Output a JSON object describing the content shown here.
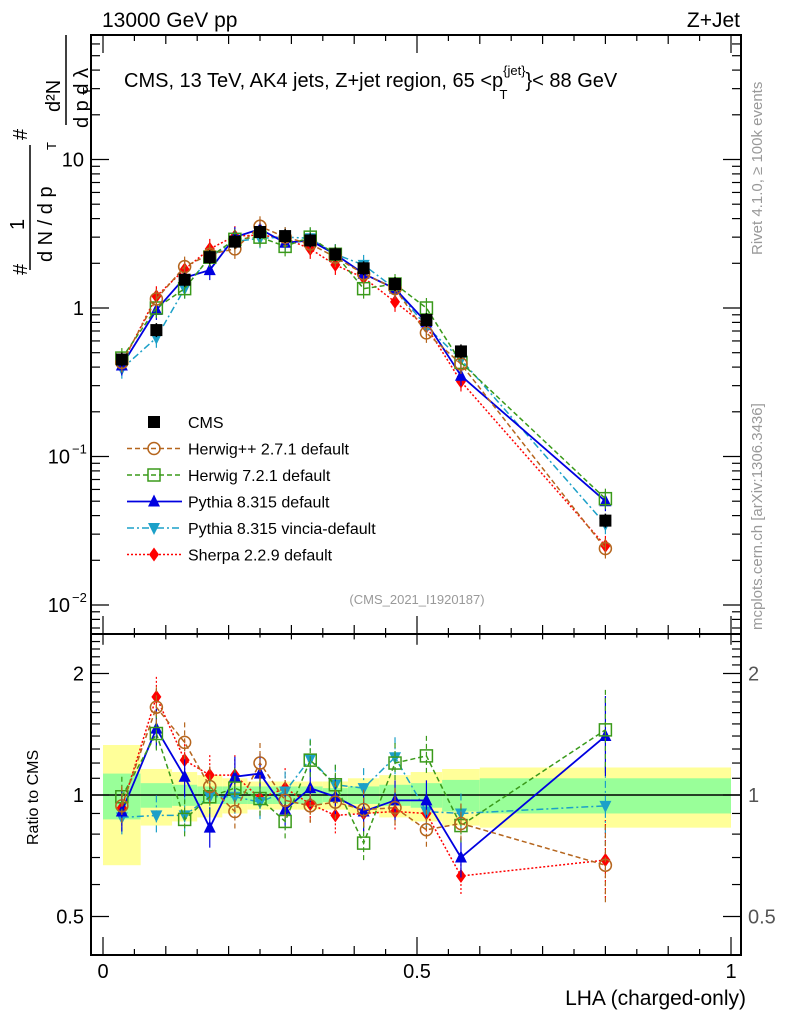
{
  "header": {
    "left": "13000 GeV pp",
    "right": "Z+Jet"
  },
  "side_labels": {
    "rivet": "Rivet 4.1.0, ≥ 100k events",
    "mcplots": "mcplots.cern.ch [arXiv:1306.3436]"
  },
  "chart_data": [
    {
      "type": "line",
      "panel": "main",
      "title": "CMS, 13 TeV, AK4 jets, Z+jet region, 65 <p_T^{jet}< 88 GeV",
      "title_parts": {
        "prefix": "CMS, 13 TeV, AK4 jets, Z+jet region, 65 <p",
        "sup": "{jet}",
        "sub": "T",
        "suffix": "}< 88 GeV"
      },
      "ylabel": "1/dN/dp_T  d²N/dp_T dλ",
      "xlabel": "LHA (charged-only)",
      "yscale": "log",
      "ylim": [
        0.0065,
        60
      ],
      "xlim": [
        -0.02,
        1.02
      ],
      "ytick_labels": [
        {
          "value": 10,
          "label": "10"
        },
        {
          "value": 1,
          "label": "1"
        },
        {
          "value": 0.1,
          "label": "10",
          "exp": "−1"
        },
        {
          "value": 0.01,
          "label": "10",
          "exp": "−2"
        }
      ],
      "watermark": "(CMS_2021_I1920187)",
      "x": [
        0.03,
        0.085,
        0.13,
        0.17,
        0.21,
        0.25,
        0.29,
        0.33,
        0.37,
        0.415,
        0.465,
        0.515,
        0.57,
        0.8
      ],
      "series": [
        {
          "name": "CMS",
          "style": "data",
          "color": "#000000",
          "marker": "square-filled",
          "values": [
            0.45,
            0.71,
            1.55,
            2.2,
            2.8,
            3.25,
            3.05,
            2.85,
            2.3,
            1.85,
            1.45,
            0.83,
            0.51,
            0.037
          ]
        },
        {
          "name": "Herwig++ 2.7.1 default",
          "color": "#b5651d",
          "marker": "circle-open",
          "dash": "5,3",
          "values": [
            0.43,
            1.15,
            1.9,
            2.3,
            2.5,
            3.55,
            3.0,
            2.7,
            2.2,
            1.7,
            1.35,
            0.68,
            0.42,
            0.024
          ]
        },
        {
          "name": "Herwig 7.2.1 default",
          "color": "#3a9a1a",
          "marker": "square-open",
          "dash": "5,3",
          "values": [
            0.46,
            1.0,
            1.35,
            2.2,
            2.9,
            3.0,
            2.6,
            3.0,
            2.3,
            1.35,
            1.45,
            1.0,
            0.43,
            0.052
          ]
        },
        {
          "name": "Pythia 8.315 default",
          "color": "#0000e0",
          "marker": "triangle-up",
          "dash": "",
          "values": [
            0.41,
            0.97,
            1.6,
            1.8,
            3.0,
            3.4,
            2.75,
            2.85,
            2.3,
            1.7,
            1.35,
            0.8,
            0.35,
            0.05
          ]
        },
        {
          "name": "Pythia 8.315 vincia-default",
          "color": "#1ca0c8",
          "marker": "triangle-down",
          "dash": "7,3,2,3",
          "values": [
            0.39,
            0.63,
            1.35,
            2.2,
            2.8,
            2.95,
            3.0,
            2.95,
            2.3,
            1.95,
            1.35,
            0.75,
            0.45,
            0.035
          ]
        },
        {
          "name": "Sherpa 2.2.9 default",
          "color": "#ff0000",
          "marker": "diamond",
          "dash": "2,2",
          "values": [
            0.42,
            1.2,
            1.82,
            2.5,
            3.05,
            3.1,
            2.95,
            2.5,
            1.95,
            1.6,
            1.1,
            0.75,
            0.32,
            0.025
          ]
        }
      ],
      "legend": {
        "placement": "center-left"
      }
    },
    {
      "type": "line",
      "panel": "ratio",
      "ylabel": "Ratio to CMS",
      "xlabel": "LHA (charged-only)",
      "yscale": "log",
      "ylim": [
        0.4,
        2.5
      ],
      "xlim": [
        -0.02,
        1.02
      ],
      "ytick_labels": [
        {
          "value": 2,
          "label": "2"
        },
        {
          "value": 1,
          "label": "1"
        },
        {
          "value": 0.5,
          "label": "0.5"
        }
      ],
      "xtick_labels": [
        {
          "value": 0,
          "label": "0"
        },
        {
          "value": 0.5,
          "label": "0.5"
        },
        {
          "value": 1,
          "label": "1"
        }
      ],
      "bin_edges": [
        0,
        0.06,
        0.11,
        0.15,
        0.19,
        0.23,
        0.27,
        0.31,
        0.35,
        0.39,
        0.44,
        0.49,
        0.54,
        0.6,
        1.0
      ],
      "uncertainty_band": {
        "stat_color": "#99ff99",
        "total_color": "#ffff99",
        "stat": [
          0.13,
          0.07,
          0.06,
          0.05,
          0.05,
          0.05,
          0.05,
          0.05,
          0.04,
          0.05,
          0.06,
          0.07,
          0.09,
          0.1
        ],
        "total": [
          0.33,
          0.16,
          0.14,
          0.12,
          0.1,
          0.08,
          0.08,
          0.08,
          0.08,
          0.1,
          0.12,
          0.14,
          0.16,
          0.17
        ]
      },
      "x": [
        0.03,
        0.085,
        0.13,
        0.17,
        0.21,
        0.25,
        0.29,
        0.33,
        0.37,
        0.415,
        0.465,
        0.515,
        0.57,
        0.8
      ],
      "series": [
        {
          "name": "Herwig++ 2.7.1 default",
          "values": [
            0.94,
            1.65,
            1.35,
            1.05,
            0.91,
            1.2,
            0.97,
            0.94,
            0.96,
            0.92,
            0.93,
            0.82,
            0.85,
            0.67
          ]
        },
        {
          "name": "Herwig 7.2.1 default",
          "values": [
            0.99,
            1.42,
            0.87,
            0.99,
            1.04,
            0.98,
            0.86,
            1.22,
            1.06,
            0.76,
            1.2,
            1.25,
            0.84,
            1.45
          ]
        },
        {
          "name": "Pythia 8.315 default",
          "values": [
            0.91,
            1.46,
            1.11,
            0.83,
            1.11,
            1.13,
            0.92,
            1.04,
            0.99,
            0.91,
            0.97,
            0.97,
            0.7,
            1.4
          ]
        },
        {
          "name": "Pythia 8.315 vincia-default",
          "values": [
            0.88,
            0.89,
            0.89,
            0.99,
            0.99,
            0.96,
            1.02,
            1.23,
            1.06,
            1.04,
            1.24,
            0.91,
            0.9,
            0.94
          ]
        },
        {
          "name": "Sherpa 2.2.9 default",
          "values": [
            0.93,
            1.75,
            1.22,
            1.12,
            1.12,
            0.98,
            1.04,
            0.95,
            0.89,
            0.9,
            0.91,
            0.9,
            0.63,
            0.69
          ]
        }
      ]
    }
  ]
}
